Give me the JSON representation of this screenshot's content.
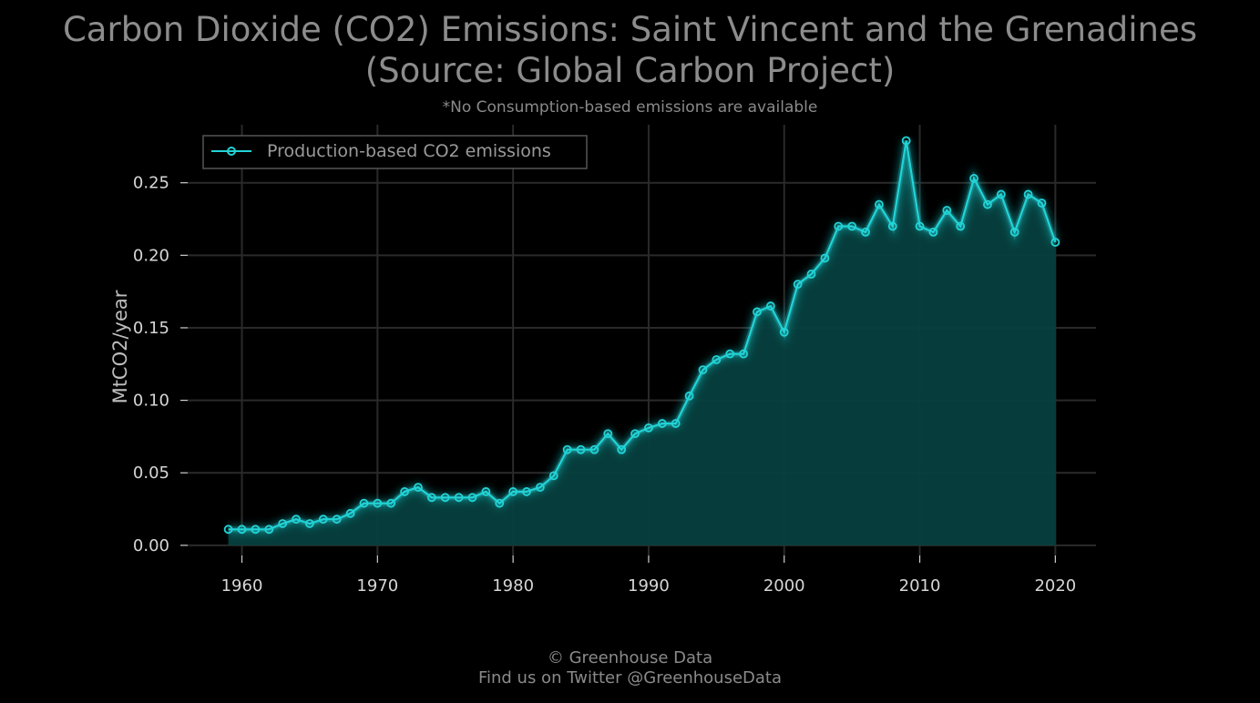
{
  "title_line1": "Carbon Dioxide (CO2) Emissions: Saint Vincent and the Grenadines",
  "title_line2": "(Source: Global Carbon Project)",
  "subtitle": "*No Consumption-based emissions are available",
  "footer_line1": "© Greenhouse Data",
  "footer_line2": "Find us on Twitter @GreenhouseData",
  "colors": {
    "line": "#22d3d6",
    "fill": "#06403f",
    "grid": "#2a2a2a",
    "background": "#000000"
  },
  "chart_data": {
    "type": "area",
    "title": "Carbon Dioxide (CO2) Emissions: Saint Vincent and the Grenadines (Source: Global Carbon Project)",
    "xlabel": "",
    "ylabel": "MtCO2/year",
    "xlim": [
      1956,
      2023
    ],
    "ylim": [
      -0.007,
      0.29
    ],
    "xticks": [
      1960,
      1970,
      1980,
      1990,
      2000,
      2010,
      2020
    ],
    "yticks": [
      0.0,
      0.05,
      0.1,
      0.15,
      0.2,
      0.25
    ],
    "ytick_labels": [
      "0.00",
      "0.05",
      "0.10",
      "0.15",
      "0.20",
      "0.25"
    ],
    "grid": true,
    "legend_position": "top-left",
    "series": [
      {
        "name": "Production-based CO2 emissions",
        "x": [
          1959,
          1960,
          1961,
          1962,
          1963,
          1964,
          1965,
          1966,
          1967,
          1968,
          1969,
          1970,
          1971,
          1972,
          1973,
          1974,
          1975,
          1976,
          1977,
          1978,
          1979,
          1980,
          1981,
          1982,
          1983,
          1984,
          1985,
          1986,
          1987,
          1988,
          1989,
          1990,
          1991,
          1992,
          1993,
          1994,
          1995,
          1996,
          1997,
          1998,
          1999,
          2000,
          2001,
          2002,
          2003,
          2004,
          2005,
          2006,
          2007,
          2008,
          2009,
          2010,
          2011,
          2012,
          2013,
          2014,
          2015,
          2016,
          2017,
          2018,
          2019,
          2020
        ],
        "y": [
          0.011,
          0.011,
          0.011,
          0.011,
          0.015,
          0.018,
          0.015,
          0.018,
          0.018,
          0.022,
          0.029,
          0.029,
          0.029,
          0.037,
          0.04,
          0.033,
          0.033,
          0.033,
          0.033,
          0.037,
          0.029,
          0.037,
          0.037,
          0.04,
          0.048,
          0.066,
          0.066,
          0.066,
          0.077,
          0.066,
          0.077,
          0.081,
          0.084,
          0.084,
          0.103,
          0.121,
          0.128,
          0.132,
          0.132,
          0.161,
          0.165,
          0.147,
          0.18,
          0.187,
          0.198,
          0.22,
          0.22,
          0.216,
          0.235,
          0.22,
          0.279,
          0.22,
          0.216,
          0.231,
          0.22,
          0.253,
          0.235,
          0.242,
          0.216,
          0.242,
          0.236,
          0.209
        ]
      }
    ]
  }
}
